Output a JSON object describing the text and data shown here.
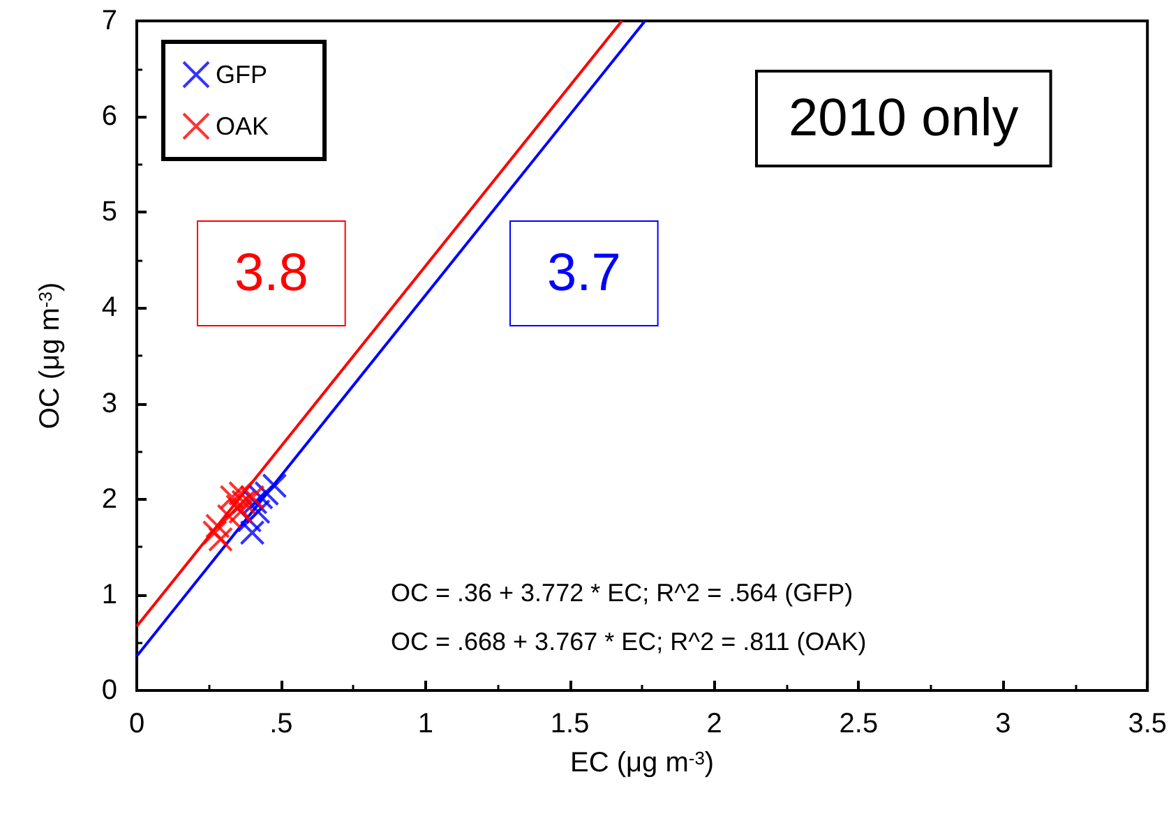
{
  "chart_data": {
    "type": "scatter",
    "xlabel": "EC (μg m$^{-3}$)",
    "ylabel": "OC (μg m$^{-3}$)",
    "xlim": [
      0,
      3.5
    ],
    "ylim": [
      0,
      7
    ],
    "xticks": [
      0,
      {
        "value": 0.5,
        "label": ".5"
      },
      1,
      1.5,
      2,
      2.5,
      3,
      3.5
    ],
    "yticks": [
      0,
      1,
      2,
      3,
      4,
      5,
      6,
      7
    ],
    "grid": false,
    "legend": "top left",
    "annotations": [
      "2010 only",
      "3.8",
      "3.7",
      "OC = .36 + 3.772 * EC; R^2 = .564 (GFP)",
      "OC = .668 + 3.767 * EC; R^2 = .811 (OAK)"
    ],
    "series": [
      {
        "name": "GFP",
        "color": "#0000ff",
        "marker": "cross",
        "x": [
          0.477,
          0.45,
          0.42,
          0.4,
          0.41,
          0.39,
          0.43
        ],
        "values": [
          2.14,
          2.06,
          1.87,
          1.65,
          1.97,
          1.78,
          2.02
        ]
      },
      {
        "name": "OAK",
        "color": "#ff0000",
        "marker": "cross",
        "x": [
          0.27,
          0.29,
          0.28,
          0.32,
          0.33,
          0.36,
          0.37,
          0.4,
          0.36,
          0.35
        ],
        "values": [
          1.65,
          1.58,
          1.72,
          1.82,
          2.02,
          2.06,
          1.97,
          2.02,
          1.87,
          1.92
        ]
      },
      {
        "type": "line",
        "color": "#0000ff",
        "marker": "none",
        "x": [
          0,
          1.76
        ],
        "values": [
          0.36,
          7.0
        ]
      },
      {
        "type": "line",
        "color": "#ff0000",
        "marker": "none",
        "x": [
          0,
          1.68
        ],
        "values": [
          0.67,
          7.0
        ]
      }
    ]
  }
}
